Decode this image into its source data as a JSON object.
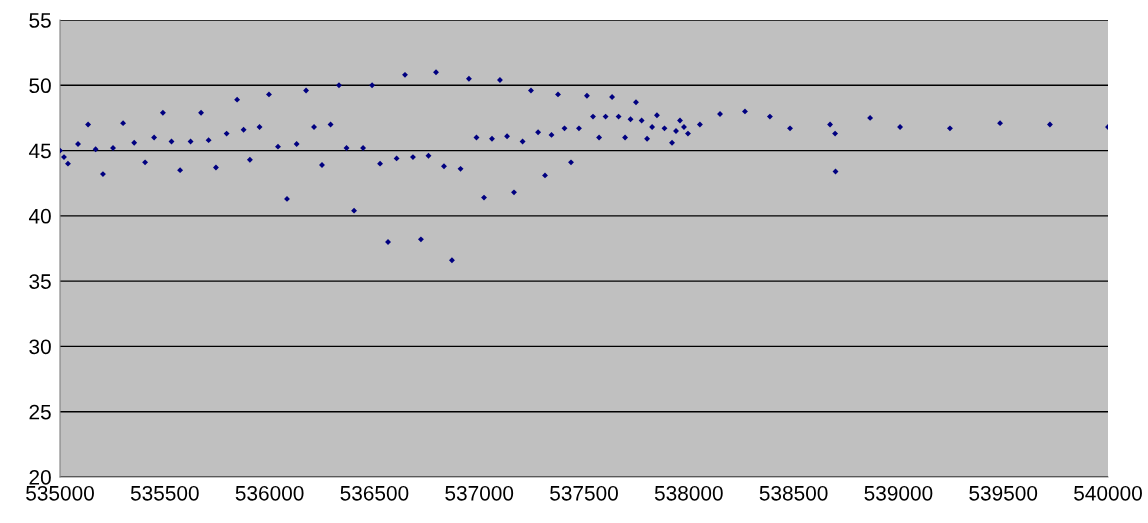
{
  "chart_data": {
    "type": "scatter",
    "marker": "diamond",
    "grid": "y",
    "xlim": [
      535000,
      540000
    ],
    "xticks": [
      535000,
      535500,
      536000,
      536500,
      537000,
      537500,
      538000,
      538500,
      539000,
      539500,
      540000
    ],
    "ylim": [
      20,
      55
    ],
    "yticks": [
      20,
      25,
      30,
      35,
      40,
      45,
      50,
      55
    ],
    "series": [
      {
        "color": "#000080",
        "x": [
          535000,
          535019,
          535038,
          535086,
          535134,
          535170,
          535205,
          535253,
          535301,
          535354,
          535406,
          535449,
          535491,
          535532,
          535573,
          535623,
          535673,
          535709,
          535744,
          535795,
          535845,
          535876,
          535906,
          535952,
          535997,
          536040,
          536083,
          536129,
          536174,
          536212,
          536250,
          536291,
          536331,
          536367,
          536403,
          536446,
          536489,
          536527,
          536565,
          536606,
          536646,
          536684,
          536722,
          536758,
          536794,
          536832,
          536870,
          536911,
          536951,
          536987,
          537023,
          537061,
          537099,
          537133,
          537166,
          537207,
          537247,
          537281,
          537314,
          537345,
          537376,
          537407,
          537438,
          537476,
          537514,
          537543,
          537572,
          537603,
          537634,
          537665,
          537696,
          537722,
          537748,
          537775,
          537801,
          537825,
          537848,
          537884,
          537920,
          537939,
          537958,
          537977,
          537996,
          538053,
          538149,
          538268,
          538387,
          538483,
          538674,
          538698,
          538700,
          538865,
          539008,
          539246,
          539485,
          539723,
          540000
        ],
        "values": [
          45.0,
          44.5,
          44.0,
          45.5,
          47.0,
          45.1,
          43.2,
          45.2,
          47.1,
          45.6,
          44.1,
          46.0,
          47.9,
          45.7,
          43.5,
          45.7,
          47.9,
          45.8,
          43.7,
          46.3,
          48.9,
          46.6,
          44.3,
          46.8,
          49.3,
          45.3,
          41.3,
          45.5,
          49.6,
          46.8,
          43.9,
          47.0,
          50.0,
          45.2,
          40.4,
          45.2,
          50.0,
          44.0,
          38.0,
          44.4,
          50.8,
          44.5,
          38.2,
          44.6,
          51.0,
          43.8,
          36.6,
          43.6,
          50.5,
          46.0,
          41.4,
          45.9,
          50.4,
          46.1,
          41.8,
          45.7,
          49.6,
          46.4,
          43.1,
          46.2,
          49.3,
          46.7,
          44.1,
          46.7,
          49.2,
          47.6,
          46.0,
          47.6,
          49.1,
          47.6,
          46.0,
          47.4,
          48.7,
          47.3,
          45.9,
          46.8,
          47.7,
          46.7,
          45.6,
          46.5,
          47.3,
          46.8,
          46.3,
          47.0,
          47.8,
          48.0,
          47.6,
          46.7,
          47.0,
          46.3,
          43.4,
          47.5,
          46.8,
          46.7,
          47.1,
          47.0,
          46.8
        ]
      }
    ]
  }
}
